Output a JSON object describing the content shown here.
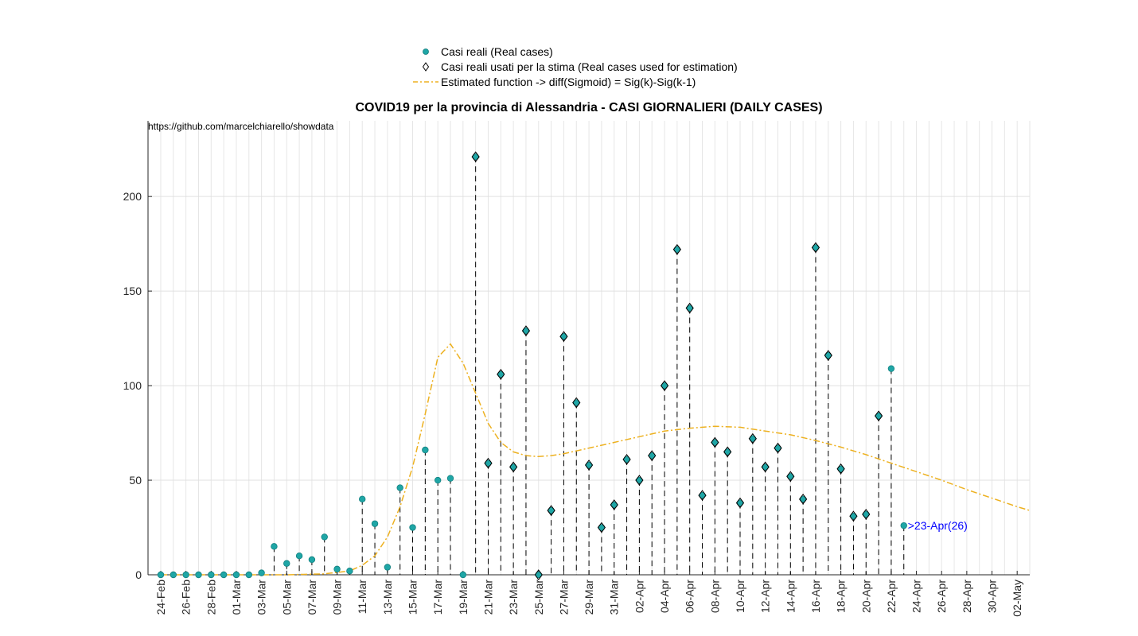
{
  "chart_data": {
    "type": "scatter",
    "title": "COVID19 per la provincia di Alessandria - CASI GIORNALIERI (DAILY CASES)",
    "annotation": "https://github.com/marcelchiarello/showdata",
    "xlabel": "",
    "ylabel": "",
    "ylim": [
      0,
      240
    ],
    "yticks": [
      0,
      50,
      100,
      150,
      200
    ],
    "grid": true,
    "legend_position": "top-center",
    "x_range": [
      "24-Feb",
      "03-May"
    ],
    "x_tick_labels": [
      "24-Feb",
      "26-Feb",
      "28-Feb",
      "01-Mar",
      "03-Mar",
      "05-Mar",
      "07-Mar",
      "09-Mar",
      "11-Mar",
      "13-Mar",
      "15-Mar",
      "17-Mar",
      "19-Mar",
      "21-Mar",
      "23-Mar",
      "25-Mar",
      "27-Mar",
      "29-Mar",
      "31-Mar",
      "02-Apr",
      "04-Apr",
      "06-Apr",
      "08-Apr",
      "10-Apr",
      "12-Apr",
      "14-Apr",
      "16-Apr",
      "18-Apr",
      "20-Apr",
      "22-Apr",
      "24-Apr",
      "26-Apr",
      "28-Apr",
      "30-Apr",
      "02-May"
    ],
    "dates": [
      "24-Feb",
      "25-Feb",
      "26-Feb",
      "27-Feb",
      "28-Feb",
      "29-Feb",
      "01-Mar",
      "02-Mar",
      "03-Mar",
      "04-Mar",
      "05-Mar",
      "06-Mar",
      "07-Mar",
      "08-Mar",
      "09-Mar",
      "10-Mar",
      "11-Mar",
      "12-Mar",
      "13-Mar",
      "14-Mar",
      "15-Mar",
      "16-Mar",
      "17-Mar",
      "18-Mar",
      "19-Mar",
      "20-Mar",
      "21-Mar",
      "22-Mar",
      "23-Mar",
      "24-Mar",
      "25-Mar",
      "26-Mar",
      "27-Mar",
      "28-Mar",
      "29-Mar",
      "30-Mar",
      "31-Mar",
      "01-Apr",
      "02-Apr",
      "03-Apr",
      "04-Apr",
      "05-Apr",
      "06-Apr",
      "07-Apr",
      "08-Apr",
      "09-Apr",
      "10-Apr",
      "11-Apr",
      "12-Apr",
      "13-Apr",
      "14-Apr",
      "15-Apr",
      "16-Apr",
      "17-Apr",
      "18-Apr",
      "19-Apr",
      "20-Apr",
      "21-Apr",
      "22-Apr",
      "23-Apr"
    ],
    "series": [
      {
        "name": "Casi reali (Real cases)",
        "color": "#1fa6a6",
        "values": [
          0,
          0,
          0,
          0,
          0,
          0,
          0,
          0,
          1,
          15,
          6,
          10,
          8,
          20,
          3,
          2,
          40,
          27,
          4,
          46,
          25,
          66,
          50,
          51,
          0,
          221,
          59,
          106,
          57,
          129,
          0,
          34,
          126,
          91,
          58,
          25,
          37,
          61,
          50,
          63,
          100,
          172,
          141,
          42,
          70,
          65,
          38,
          72,
          57,
          67,
          52,
          40,
          173,
          116,
          56,
          31,
          32,
          84,
          109,
          26
        ]
      },
      {
        "name": "Casi reali usati per la stima (Real cases used for estimation)",
        "color": "#000000",
        "dates": [
          "20-Mar",
          "21-Mar",
          "22-Mar",
          "23-Mar",
          "24-Mar",
          "25-Mar",
          "26-Mar",
          "27-Mar",
          "28-Mar",
          "29-Mar",
          "30-Mar",
          "31-Mar",
          "01-Apr",
          "02-Apr",
          "03-Apr",
          "04-Apr",
          "05-Apr",
          "06-Apr",
          "07-Apr",
          "08-Apr",
          "09-Apr",
          "10-Apr",
          "11-Apr",
          "12-Apr",
          "13-Apr",
          "14-Apr",
          "15-Apr",
          "16-Apr",
          "17-Apr",
          "18-Apr",
          "19-Apr",
          "20-Apr",
          "21-Apr"
        ],
        "values": [
          221,
          59,
          106,
          57,
          129,
          0,
          34,
          126,
          91,
          58,
          25,
          37,
          61,
          50,
          63,
          100,
          172,
          141,
          42,
          70,
          65,
          38,
          72,
          57,
          67,
          52,
          40,
          173,
          116,
          56,
          31,
          32,
          84
        ]
      },
      {
        "name": "Estimated function -> diff(Sigmoid) = Sig(k)-Sig(k-1)",
        "color": "#edb120",
        "x": [
          "24-Feb",
          "01-Mar",
          "05-Mar",
          "08-Mar",
          "10-Mar",
          "11-Mar",
          "12-Mar",
          "13-Mar",
          "14-Mar",
          "15-Mar",
          "16-Mar",
          "17-Mar",
          "18-Mar",
          "19-Mar",
          "20-Mar",
          "21-Mar",
          "22-Mar",
          "23-Mar",
          "24-Mar",
          "25-Mar",
          "26-Mar",
          "27-Mar",
          "29-Mar",
          "31-Mar",
          "02-Apr",
          "04-Apr",
          "06-Apr",
          "08-Apr",
          "10-Apr",
          "12-Apr",
          "14-Apr",
          "16-Apr",
          "18-Apr",
          "20-Apr",
          "22-Apr",
          "24-Apr",
          "26-Apr",
          "28-Apr",
          "30-Apr",
          "02-May",
          "03-May"
        ],
        "values": [
          0,
          0,
          0,
          0.5,
          2,
          5,
          10,
          20,
          36,
          57,
          85,
          115,
          122,
          112,
          96,
          80,
          70,
          65,
          63,
          62.5,
          63,
          64,
          67,
          70,
          73,
          76,
          77.5,
          78.5,
          78,
          76,
          74,
          71,
          67.5,
          63.5,
          59,
          54.5,
          50,
          45,
          40.5,
          36,
          34
        ]
      }
    ],
    "last_point_label": ">23-Apr(26)"
  }
}
